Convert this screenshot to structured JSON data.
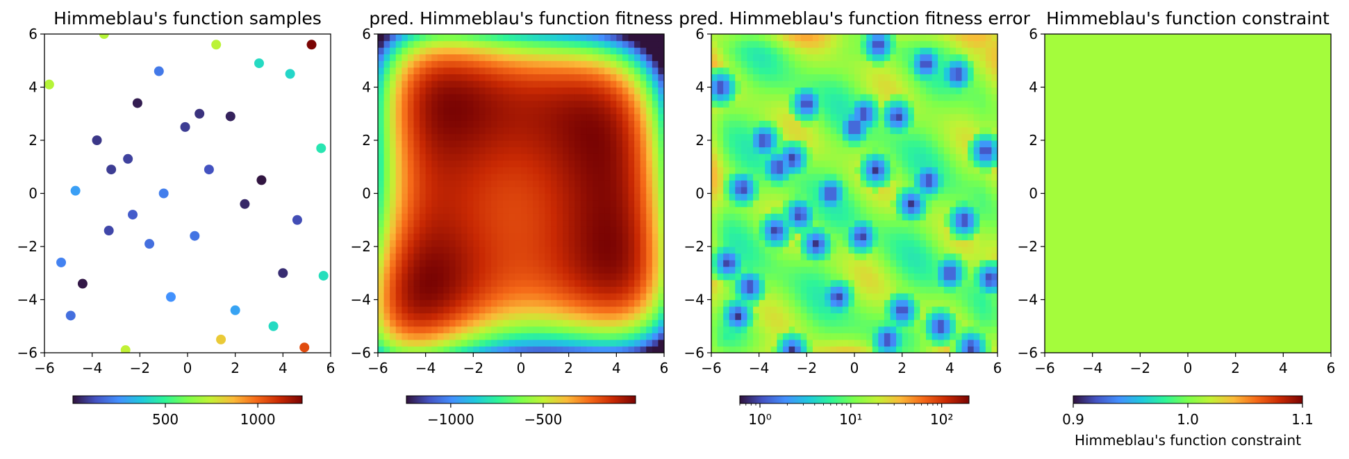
{
  "chart_data": [
    {
      "type": "scatter",
      "title": "Himmeblau's function samples",
      "xlim": [
        -6,
        6
      ],
      "ylim": [
        -6,
        6
      ],
      "xticks": [
        "−6",
        "−4",
        "−2",
        "0",
        "2",
        "4",
        "6"
      ],
      "yticks": [
        "6",
        "4",
        "2",
        "0",
        "−2",
        "−4",
        "−6"
      ],
      "colormap": "turbo",
      "color_range": [
        0,
        1240
      ],
      "colorbar_ticks": [
        {
          "value": 500,
          "label": "500"
        },
        {
          "value": 1000,
          "label": "1000"
        }
      ],
      "points": [
        {
          "x": -3.5,
          "y": 6.0,
          "c": 720
        },
        {
          "x": 1.2,
          "y": 5.6,
          "c": 730
        },
        {
          "x": 5.2,
          "y": 5.6,
          "c": 1240
        },
        {
          "x": -5.8,
          "y": 4.1,
          "c": 720
        },
        {
          "x": -1.2,
          "y": 4.6,
          "c": 200
        },
        {
          "x": 3.0,
          "y": 4.9,
          "c": 420
        },
        {
          "x": 4.3,
          "y": 4.5,
          "c": 410
        },
        {
          "x": -2.1,
          "y": 3.4,
          "c": 20
        },
        {
          "x": 0.5,
          "y": 3.0,
          "c": 60
        },
        {
          "x": 1.8,
          "y": 2.9,
          "c": 30
        },
        {
          "x": -0.1,
          "y": 2.5,
          "c": 80
        },
        {
          "x": -3.8,
          "y": 2.0,
          "c": 70
        },
        {
          "x": 5.6,
          "y": 1.7,
          "c": 450
        },
        {
          "x": -2.5,
          "y": 1.3,
          "c": 90
        },
        {
          "x": -3.2,
          "y": 0.9,
          "c": 80
        },
        {
          "x": 0.9,
          "y": 0.9,
          "c": 120
        },
        {
          "x": 3.1,
          "y": 0.5,
          "c": 5
        },
        {
          "x": -4.7,
          "y": 0.1,
          "c": 280
        },
        {
          "x": -1.0,
          "y": 0.0,
          "c": 210
        },
        {
          "x": 2.4,
          "y": -0.4,
          "c": 40
        },
        {
          "x": -2.3,
          "y": -0.8,
          "c": 140
        },
        {
          "x": 4.6,
          "y": -1.0,
          "c": 110
        },
        {
          "x": -3.3,
          "y": -1.4,
          "c": 100
        },
        {
          "x": 0.3,
          "y": -1.6,
          "c": 190
        },
        {
          "x": -1.6,
          "y": -1.9,
          "c": 180
        },
        {
          "x": -5.3,
          "y": -2.6,
          "c": 220
        },
        {
          "x": 4.0,
          "y": -3.0,
          "c": 50
        },
        {
          "x": 5.7,
          "y": -3.1,
          "c": 430
        },
        {
          "x": -4.4,
          "y": -3.4,
          "c": 10
        },
        {
          "x": -0.7,
          "y": -3.9,
          "c": 250
        },
        {
          "x": 2.0,
          "y": -4.4,
          "c": 290
        },
        {
          "x": -4.9,
          "y": -4.6,
          "c": 180
        },
        {
          "x": 3.6,
          "y": -5.0,
          "c": 420
        },
        {
          "x": 1.4,
          "y": -5.5,
          "c": 830
        },
        {
          "x": -2.6,
          "y": -5.9,
          "c": 740
        },
        {
          "x": 4.9,
          "y": -5.8,
          "c": 1050
        }
      ]
    },
    {
      "type": "heatmap",
      "title": "pred. Himmeblau's function fitness",
      "xlim": [
        -6,
        6
      ],
      "ylim": [
        -6,
        6
      ],
      "xticks": [
        "−6",
        "−4",
        "−2",
        "0",
        "2",
        "4",
        "6"
      ],
      "yticks": [
        "6",
        "4",
        "2",
        "0",
        "−2",
        "−4",
        "−6"
      ],
      "colormap": "turbo",
      "color_range": [
        -1240,
        0
      ],
      "colorbar_ticks": [
        {
          "value": -1000,
          "label": "−1000"
        },
        {
          "value": -500,
          "label": "−500"
        }
      ],
      "function": "negative Himmelblau: -((x^2+y-11)^2+(x+y^2-7)^2)"
    },
    {
      "type": "heatmap",
      "title": "pred. Himmeblau's function fitness error",
      "xlim": [
        -6,
        6
      ],
      "ylim": [
        -6,
        6
      ],
      "xticks": [
        "−6",
        "−4",
        "−2",
        "0",
        "2",
        "4",
        "6"
      ],
      "yticks": [
        "6",
        "4",
        "2",
        "0",
        "−2",
        "−4",
        "−6"
      ],
      "colormap": "turbo",
      "color_scale": "log",
      "color_range": [
        0.6,
        200
      ],
      "colorbar_ticks": [
        {
          "value": 1,
          "label": "10⁰"
        },
        {
          "value": 10,
          "label": "10¹"
        },
        {
          "value": 100,
          "label": "10²"
        }
      ],
      "low_error_spots": [
        [
          -5.6,
          4.0
        ],
        [
          -4.7,
          0.2
        ],
        [
          -3.8,
          2.0
        ],
        [
          -3.2,
          1.0
        ],
        [
          -2.6,
          1.3
        ],
        [
          -2.0,
          3.4
        ],
        [
          -1.0,
          0.0
        ],
        [
          0.0,
          2.5
        ],
        [
          0.4,
          3.0
        ],
        [
          1.8,
          2.9
        ],
        [
          0.9,
          0.9
        ],
        [
          3.0,
          4.9
        ],
        [
          4.3,
          4.5
        ],
        [
          5.5,
          1.6
        ],
        [
          3.1,
          0.5
        ],
        [
          2.4,
          -0.4
        ],
        [
          -2.3,
          -0.8
        ],
        [
          -3.3,
          -1.4
        ],
        [
          0.3,
          -1.6
        ],
        [
          -1.6,
          -1.9
        ],
        [
          4.6,
          -1.0
        ],
        [
          -5.3,
          -2.6
        ],
        [
          -4.4,
          -3.5
        ],
        [
          -0.7,
          -3.9
        ],
        [
          2.0,
          -4.4
        ],
        [
          4.0,
          -3.0
        ],
        [
          5.7,
          -3.2
        ],
        [
          -4.9,
          -4.6
        ],
        [
          3.6,
          -5.0
        ],
        [
          1.4,
          -5.5
        ],
        [
          -2.6,
          -5.9
        ],
        [
          4.9,
          -5.8
        ],
        [
          1.0,
          5.6
        ]
      ]
    },
    {
      "type": "heatmap",
      "title": "Himmeblau's function constraint",
      "xlim": [
        -6,
        6
      ],
      "ylim": [
        -6,
        6
      ],
      "xticks": [
        "−6",
        "−4",
        "−2",
        "0",
        "2",
        "4",
        "6"
      ],
      "yticks": [
        "6",
        "4",
        "2",
        "0",
        "−2",
        "−4",
        "−6"
      ],
      "colormap": "turbo",
      "color_range": [
        0.9,
        1.1
      ],
      "uniform_value": 1.0,
      "uniform_color": "#a4fc3c",
      "colorbar_ticks": [
        {
          "value": 0.9,
          "label": "0.9"
        },
        {
          "value": 1.0,
          "label": "1.0"
        },
        {
          "value": 1.1,
          "label": "1.1"
        }
      ],
      "colorbar_label": "Himmeblau's function constraint"
    }
  ]
}
